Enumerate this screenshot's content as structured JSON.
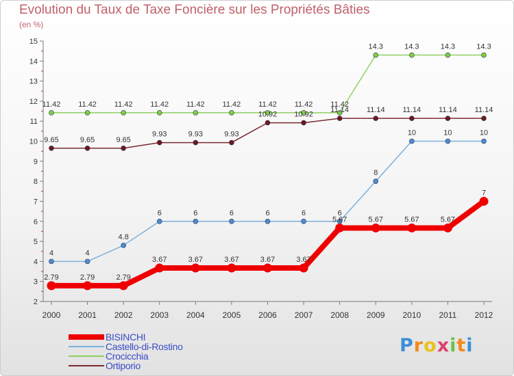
{
  "title": "Evolution du Taux de Taxe Foncière sur les Propriétés Bâties",
  "subtitle": "(en %)",
  "logo_text": "Proxiti",
  "chart_data": {
    "type": "line",
    "title": "Evolution du Taux de Taxe Foncière sur les Propriétés Bâties",
    "ylabel": "(en %)",
    "xlabel": "",
    "ylim": [
      2,
      15
    ],
    "yticks": [
      "2",
      "3",
      "4",
      "5",
      "6",
      "7",
      "8",
      "9",
      "10",
      "11",
      "12",
      "13",
      "14",
      "15"
    ],
    "categories": [
      "2000",
      "2001",
      "2002",
      "2003",
      "2004",
      "2005",
      "2006",
      "2007",
      "2008",
      "2009",
      "2010",
      "2011",
      "2012"
    ],
    "grid": false,
    "legend": "bottom-left",
    "series": [
      {
        "name": "Crocicchia",
        "color": "#90d060",
        "marker": "#7ed040",
        "values": [
          11.42,
          11.42,
          11.42,
          11.42,
          11.42,
          11.42,
          11.42,
          11.42,
          11.42,
          14.3,
          14.3,
          14.3,
          14.3
        ],
        "labels": [
          "11.42",
          "11.42",
          "11.42",
          "11.42",
          "11.42",
          "11.42",
          "11.42",
          "11.42",
          "11.42",
          "14.3",
          "14.3",
          "14.3",
          "14.3"
        ]
      },
      {
        "name": "Ortiporio",
        "color": "#7a2a30",
        "marker": "#6a1a20",
        "values": [
          9.65,
          9.65,
          9.65,
          9.93,
          9.93,
          9.93,
          10.92,
          10.92,
          11.14,
          11.14,
          11.14,
          11.14,
          11.14
        ],
        "labels": [
          "9.65",
          "9.65",
          "9.65",
          "9.93",
          "9.93",
          "9.93",
          "10.92",
          "10.92",
          "11.14",
          "11.14",
          "11.14",
          "11.14",
          "11.14"
        ]
      },
      {
        "name": "Castello-di-Rostino",
        "color": "#7ab0dc",
        "marker": "#4a8ed0",
        "values": [
          4,
          4,
          4.8,
          6,
          6,
          6,
          6,
          6,
          6,
          8,
          10,
          10,
          10
        ],
        "labels": [
          "4",
          "4",
          "4.8",
          "6",
          "6",
          "6",
          "6",
          "6",
          "6",
          "8",
          "10",
          "10",
          "10"
        ]
      },
      {
        "name": "BISINCHI",
        "color": "#ee0000",
        "marker": "#ee0000",
        "values": [
          2.79,
          2.79,
          2.79,
          3.67,
          3.67,
          3.67,
          3.67,
          3.67,
          5.67,
          5.67,
          5.67,
          5.67,
          7
        ],
        "labels": [
          "2.79",
          "2.79",
          "2.79",
          "3.67",
          "3.67",
          "3.67",
          "3.67",
          "3.67",
          "5.67",
          "5.67",
          "5.67",
          "5.67",
          "7"
        ]
      }
    ],
    "legend_order": [
      "BISINCHI",
      "Castello-di-Rostino",
      "Crocicchia",
      "Ortiporio"
    ]
  }
}
